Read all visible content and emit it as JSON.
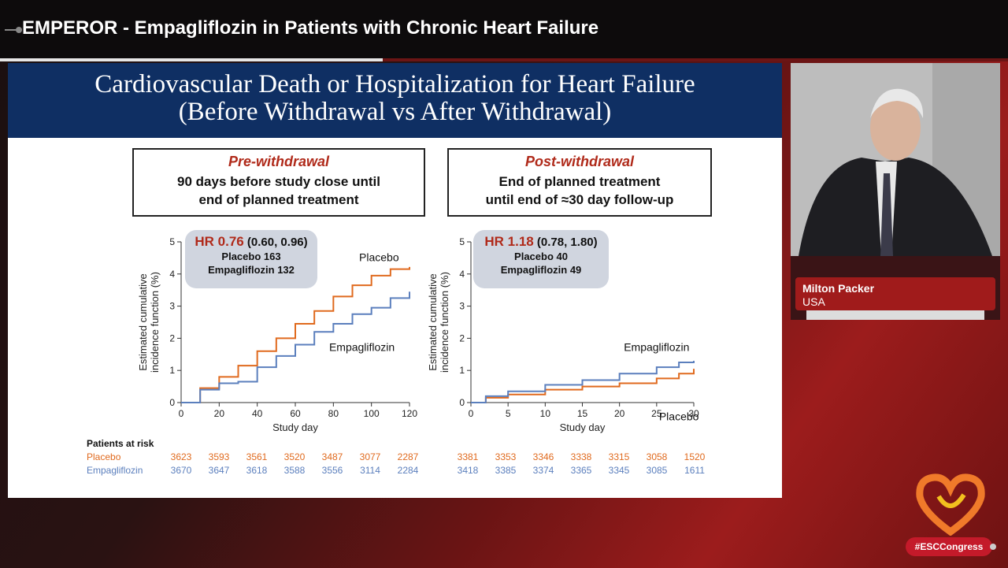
{
  "window": {
    "title": "EMPEROR - Empagliflozin in Patients with Chronic Heart Failure"
  },
  "colors": {
    "placebo": "#e06a1e",
    "empagliflozin": "#5b7fbd",
    "header": "#0f2f63",
    "accent_red": "#b02a1a"
  },
  "slide": {
    "title_line1": "Cardiovascular Death or Hospitalization for Heart Failure",
    "title_line2": "(Before Withdrawal vs After Withdrawal)",
    "pre": {
      "heading": "Pre-withdrawal",
      "line1": "90 days before study close until",
      "line2": "end of planned treatment",
      "hr_label": "HR 0.76",
      "hr_ci": "(0.60, 0.96)",
      "placebo_events": "Placebo 163",
      "empa_events": "Empagliflozin 132"
    },
    "post": {
      "heading": "Post-withdrawal",
      "line1": "End of planned treatment",
      "line2": "until end of ≈30 day follow-up",
      "hr_label": "HR 1.18",
      "hr_ci": "(0.78, 1.80)",
      "placebo_events": "Placebo 40",
      "empa_events": "Empagliflozin 49"
    },
    "risk_table": {
      "heading": "Patients at risk",
      "placebo_label": "Placebo",
      "empa_label": "Empagliflozin",
      "pre_placebo": [
        "3623",
        "3593",
        "3561",
        "3520",
        "3487",
        "3077",
        "2287"
      ],
      "pre_empa": [
        "3670",
        "3647",
        "3618",
        "3588",
        "3556",
        "3114",
        "2284"
      ],
      "post_placebo": [
        "3381",
        "3353",
        "3346",
        "3338",
        "3315",
        "3058",
        "1520"
      ],
      "post_empa": [
        "3418",
        "3385",
        "3374",
        "3365",
        "3345",
        "3085",
        "1611"
      ]
    }
  },
  "chart_data": [
    {
      "type": "line",
      "title": "",
      "xlabel": "Study day",
      "ylabel": "Estimated cumulative incidence function (%)",
      "xlim": [
        0,
        120
      ],
      "ylim": [
        0,
        5
      ],
      "xticks": [
        0,
        20,
        40,
        60,
        80,
        100,
        120
      ],
      "yticks": [
        0,
        1,
        2,
        3,
        4,
        5
      ],
      "series": [
        {
          "name": "Placebo",
          "x": [
            0,
            10,
            20,
            30,
            40,
            50,
            60,
            70,
            80,
            90,
            100,
            110,
            120
          ],
          "y": [
            0,
            0.45,
            0.8,
            1.15,
            1.6,
            2.0,
            2.45,
            2.85,
            3.3,
            3.65,
            3.95,
            4.15,
            4.22
          ]
        },
        {
          "name": "Empagliflozin",
          "x": [
            0,
            10,
            20,
            30,
            40,
            50,
            60,
            70,
            80,
            90,
            100,
            110,
            120
          ],
          "y": [
            0,
            0.4,
            0.6,
            0.65,
            1.1,
            1.45,
            1.8,
            2.2,
            2.45,
            2.75,
            2.95,
            3.25,
            3.45
          ]
        }
      ]
    },
    {
      "type": "line",
      "title": "",
      "xlabel": "Study day",
      "ylabel": "Estimated cumulative incidence function (%)",
      "xlim": [
        0,
        30
      ],
      "ylim": [
        0,
        5
      ],
      "xticks": [
        0,
        5,
        10,
        15,
        20,
        25,
        30
      ],
      "yticks": [
        0,
        1,
        2,
        3,
        4,
        5
      ],
      "series": [
        {
          "name": "Placebo",
          "x": [
            0,
            2,
            5,
            10,
            15,
            20,
            25,
            28,
            30
          ],
          "y": [
            0,
            0.15,
            0.25,
            0.4,
            0.5,
            0.6,
            0.75,
            0.9,
            1.05
          ]
        },
        {
          "name": "Empagliflozin",
          "x": [
            0,
            2,
            5,
            10,
            15,
            20,
            25,
            28,
            30
          ],
          "y": [
            0,
            0.2,
            0.35,
            0.55,
            0.7,
            0.9,
            1.1,
            1.25,
            1.3
          ]
        }
      ]
    }
  ],
  "speaker": {
    "name": "Milton Packer",
    "country": "USA"
  },
  "footer": {
    "hashtag": "#ESCCongress"
  }
}
